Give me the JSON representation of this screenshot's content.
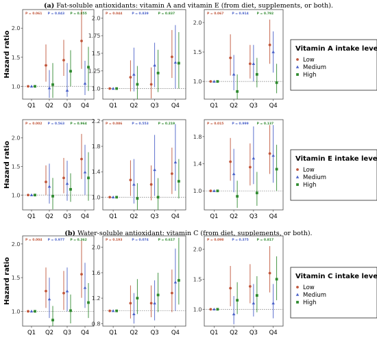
{
  "captions": {
    "a_letter": "(a)",
    "a_text": "Fat-soluble antioxidants: vitamin A and vitamin E (from diet, supplements, or both).",
    "b_letter": "(b)",
    "b_text": "Water-soluble antioxidant: vitamin C (from diet, supplements, or both)."
  },
  "colors": {
    "low": "#c0553a",
    "medium": "#4a61c8",
    "high": "#2f8a2f"
  },
  "legends": [
    {
      "title": "Vitamin A intake level",
      "items": [
        "Low",
        "Medium",
        "High"
      ]
    },
    {
      "title": "Vitamin E intake level",
      "items": [
        "Low",
        "Medium",
        "High"
      ]
    },
    {
      "title": "Vitamin C intake level",
      "items": [
        "Low",
        "Medium",
        "High"
      ]
    }
  ],
  "chart_data": [
    {
      "type": "scatter",
      "row": 0,
      "col": 0,
      "ylabel": "Hazard ratio",
      "categories": [
        "Q1",
        "Q2",
        "Q3",
        "Q4"
      ],
      "yticks": [
        1.0,
        1.5,
        2.0
      ],
      "ylim": [
        0.78,
        2.32
      ],
      "p_values": [
        "P = 0.061",
        "P = 0.843",
        "P = 0.855"
      ],
      "series": [
        {
          "name": "Low",
          "values": [
            [
              1.0,
              1.0,
              1.0
            ],
            [
              1.36,
              1.08,
              1.72
            ],
            [
              1.45,
              1.18,
              1.8
            ],
            [
              1.78,
              1.3,
              2.32
            ]
          ]
        },
        {
          "name": "Medium",
          "values": [
            [
              1.0,
              1.0,
              1.0
            ],
            [
              0.97,
              0.8,
              1.28
            ],
            [
              0.93,
              0.82,
              1.4
            ],
            [
              1.05,
              0.85,
              1.44
            ]
          ]
        },
        {
          "name": "High",
          "values": [
            [
              1.0,
              1.0,
              1.0
            ],
            [
              1.03,
              0.8,
              1.4
            ],
            [
              1.26,
              1.0,
              1.62
            ],
            [
              1.33,
              0.92,
              1.68
            ]
          ]
        }
      ]
    },
    {
      "type": "scatter",
      "row": 0,
      "col": 1,
      "ylabel": "",
      "categories": [
        "Q1",
        "Q2",
        "Q3",
        "Q4"
      ],
      "yticks": [
        1.0,
        1.25,
        1.5,
        1.75,
        2.0
      ],
      "ylim": [
        0.85,
        2.12
      ],
      "p_values": [
        "P = 0.044",
        "P = 0.839",
        "P = 0.837"
      ],
      "series": [
        {
          "name": "Low",
          "values": [
            [
              1.0,
              1.0,
              1.0
            ],
            [
              1.16,
              0.96,
              1.4
            ],
            [
              1.06,
              0.86,
              1.3
            ],
            [
              1.45,
              1.15,
              1.83
            ]
          ]
        },
        {
          "name": "Medium",
          "values": [
            [
              1.0,
              1.0,
              1.0
            ],
            [
              1.2,
              0.96,
              1.58
            ],
            [
              1.33,
              1.02,
              1.65
            ],
            [
              1.37,
              1.0,
              1.9
            ]
          ]
        },
        {
          "name": "High",
          "values": [
            [
              1.0,
              1.0,
              1.0
            ],
            [
              1.06,
              0.85,
              1.32
            ],
            [
              1.22,
              0.95,
              1.55
            ],
            [
              1.36,
              1.0,
              1.8
            ]
          ]
        }
      ]
    },
    {
      "type": "scatter",
      "row": 0,
      "col": 2,
      "ylabel": "",
      "categories": [
        "Q1",
        "Q2",
        "Q3",
        "Q4"
      ],
      "yticks": [
        1.0,
        1.5,
        2.0
      ],
      "ylim": [
        0.7,
        2.22
      ],
      "p_values": [
        "P = 0.067",
        "P = 0.914",
        "P = 0.792"
      ],
      "series": [
        {
          "name": "Low",
          "values": [
            [
              1.0,
              1.0,
              1.0
            ],
            [
              1.4,
              1.1,
              1.8
            ],
            [
              1.3,
              1.05,
              1.62
            ],
            [
              1.62,
              1.3,
              2.05
            ]
          ]
        },
        {
          "name": "Medium",
          "values": [
            [
              1.0,
              1.0,
              1.0
            ],
            [
              1.12,
              0.85,
              1.45
            ],
            [
              1.3,
              1.0,
              1.62
            ],
            [
              1.5,
              1.15,
              1.85
            ]
          ]
        },
        {
          "name": "High",
          "values": [
            [
              1.0,
              1.0,
              1.0
            ],
            [
              0.83,
              0.7,
              1.12
            ],
            [
              1.12,
              0.9,
              1.4
            ],
            [
              0.98,
              0.8,
              1.3
            ]
          ]
        }
      ]
    },
    {
      "type": "scatter",
      "row": 1,
      "col": 0,
      "ylabel": "Hazard ratio",
      "categories": [
        "Q1",
        "Q2",
        "Q3",
        "Q4"
      ],
      "yticks": [
        1.0,
        1.5,
        2.0
      ],
      "ylim": [
        0.74,
        2.32
      ],
      "p_values": [
        "P = 0.002",
        "P = 0.563",
        "P = 0.964"
      ],
      "series": [
        {
          "name": "Low",
          "values": [
            [
              1.0,
              1.0,
              1.0
            ],
            [
              1.23,
              1.0,
              1.52
            ],
            [
              1.3,
              1.03,
              1.65
            ],
            [
              1.63,
              1.28,
              2.07
            ]
          ]
        },
        {
          "name": "Medium",
          "values": [
            [
              1.0,
              1.0,
              1.0
            ],
            [
              1.15,
              0.85,
              1.55
            ],
            [
              1.2,
              0.9,
              1.6
            ],
            [
              1.4,
              1.0,
              1.88
            ]
          ]
        },
        {
          "name": "High",
          "values": [
            [
              1.0,
              1.0,
              1.0
            ],
            [
              0.98,
              0.75,
              1.3
            ],
            [
              1.1,
              0.88,
              1.38
            ],
            [
              1.3,
              0.9,
              1.75
            ]
          ]
        }
      ]
    },
    {
      "type": "scatter",
      "row": 1,
      "col": 1,
      "ylabel": "",
      "categories": [
        "Q1",
        "Q2",
        "Q3",
        "Q4"
      ],
      "yticks": [
        1.0,
        1.4,
        1.8,
        2.2
      ],
      "ylim": [
        0.8,
        2.22
      ],
      "p_values": [
        "P = 0.086",
        "P = 0.553",
        "P = 0.219"
      ],
      "series": [
        {
          "name": "Low",
          "values": [
            [
              1.0,
              1.0,
              1.0
            ],
            [
              1.27,
              1.02,
              1.58
            ],
            [
              1.2,
              0.95,
              1.5
            ],
            [
              1.37,
              1.05,
              1.78
            ]
          ]
        },
        {
          "name": "Medium",
          "values": [
            [
              1.0,
              1.0,
              1.0
            ],
            [
              1.2,
              0.9,
              1.6
            ],
            [
              1.43,
              1.02,
              1.98
            ],
            [
              1.55,
              1.1,
              2.15
            ]
          ]
        },
        {
          "name": "High",
          "values": [
            [
              1.0,
              1.0,
              1.0
            ],
            [
              0.98,
              0.8,
              1.22
            ],
            [
              1.0,
              0.8,
              1.3
            ],
            [
              1.25,
              0.98,
              1.6
            ]
          ]
        }
      ]
    },
    {
      "type": "scatter",
      "row": 1,
      "col": 2,
      "ylabel": "",
      "categories": [
        "Q1",
        "Q2",
        "Q3",
        "Q4"
      ],
      "yticks": [
        1.0,
        1.4,
        1.8
      ],
      "ylim": [
        0.72,
        2.05
      ],
      "p_values": [
        "P = 0.015",
        "P = 0.999",
        "P = 0.137"
      ],
      "series": [
        {
          "name": "Low",
          "values": [
            [
              1.0,
              1.0,
              1.0
            ],
            [
              1.43,
              1.15,
              1.78
            ],
            [
              1.35,
              1.08,
              1.7
            ],
            [
              1.55,
              1.25,
              1.97
            ]
          ]
        },
        {
          "name": "Medium",
          "values": [
            [
              1.0,
              1.0,
              1.0
            ],
            [
              1.25,
              0.98,
              1.62
            ],
            [
              1.48,
              1.1,
              1.95
            ],
            [
              1.52,
              1.12,
              1.97
            ]
          ]
        },
        {
          "name": "High",
          "values": [
            [
              1.0,
              1.0,
              1.0
            ],
            [
              0.92,
              0.75,
              1.15
            ],
            [
              0.97,
              0.78,
              1.28
            ],
            [
              1.32,
              1.0,
              1.68
            ]
          ]
        }
      ]
    },
    {
      "type": "scatter",
      "row": 2,
      "col": 0,
      "ylabel": "Hazard ratio",
      "categories": [
        "Q1",
        "Q2",
        "Q3",
        "Q4"
      ],
      "yticks": [
        1.0,
        1.5,
        2.0
      ],
      "ylim": [
        0.78,
        2.12
      ],
      "p_values": [
        "P = 0.004",
        "P = 0.977",
        "P = 0.362"
      ],
      "series": [
        {
          "name": "Low",
          "values": [
            [
              1.0,
              1.0,
              1.0
            ],
            [
              1.3,
              1.05,
              1.65
            ],
            [
              1.27,
              1.02,
              1.6
            ],
            [
              1.55,
              1.2,
              2.05
            ]
          ]
        },
        {
          "name": "Medium",
          "values": [
            [
              1.0,
              1.0,
              1.0
            ],
            [
              1.18,
              0.9,
              1.5
            ],
            [
              1.3,
              1.0,
              1.65
            ],
            [
              1.35,
              1.05,
              1.72
            ]
          ]
        },
        {
          "name": "High",
          "values": [
            [
              1.0,
              1.0,
              1.0
            ],
            [
              0.87,
              0.78,
              1.08
            ],
            [
              1.01,
              0.82,
              1.25
            ],
            [
              1.13,
              0.9,
              1.42
            ]
          ]
        }
      ]
    },
    {
      "type": "scatter",
      "row": 2,
      "col": 1,
      "ylabel": "",
      "categories": [
        "Q1",
        "Q2",
        "Q3",
        "Q4"
      ],
      "yticks": [
        0.8,
        1.2,
        1.6,
        2.0
      ],
      "ylim": [
        0.76,
        2.18
      ],
      "p_values": [
        "P = 0.193",
        "P = 0.074",
        "P = 0.617"
      ],
      "series": [
        {
          "name": "Low",
          "values": [
            [
              1.0,
              1.0,
              1.0
            ],
            [
              1.12,
              0.88,
              1.4
            ],
            [
              1.12,
              0.9,
              1.4
            ],
            [
              1.28,
              0.98,
              1.65
            ]
          ]
        },
        {
          "name": "Medium",
          "values": [
            [
              1.0,
              1.0,
              1.0
            ],
            [
              0.95,
              0.8,
              1.28
            ],
            [
              1.12,
              0.85,
              1.48
            ],
            [
              1.45,
              1.0,
              1.98
            ]
          ]
        },
        {
          "name": "High",
          "values": [
            [
              1.0,
              1.0,
              1.0
            ],
            [
              1.2,
              0.95,
              1.5
            ],
            [
              1.25,
              0.98,
              1.6
            ],
            [
              1.48,
              1.1,
              2.15
            ]
          ]
        }
      ]
    },
    {
      "type": "scatter",
      "row": 2,
      "col": 2,
      "ylabel": "",
      "categories": [
        "Q1",
        "Q2",
        "Q3",
        "Q4"
      ],
      "yticks": [
        1.0,
        1.5,
        2.0
      ],
      "ylim": [
        0.72,
        2.22
      ],
      "p_values": [
        "P = 0.098",
        "P = 0.375",
        "P = 0.817"
      ],
      "series": [
        {
          "name": "Low",
          "values": [
            [
              1.0,
              1.0,
              1.0
            ],
            [
              1.35,
              1.05,
              1.72
            ],
            [
              1.38,
              1.1,
              1.75
            ],
            [
              1.6,
              1.28,
              2.05
            ]
          ]
        },
        {
          "name": "Medium",
          "values": [
            [
              1.0,
              1.0,
              1.0
            ],
            [
              0.92,
              0.75,
              1.22
            ],
            [
              1.1,
              0.88,
              1.42
            ],
            [
              1.1,
              0.85,
              1.42
            ]
          ]
        },
        {
          "name": "High",
          "values": [
            [
              1.0,
              1.0,
              1.0
            ],
            [
              1.15,
              0.92,
              1.45
            ],
            [
              1.23,
              0.95,
              1.55
            ],
            [
              1.5,
              1.15,
              1.88
            ]
          ]
        }
      ]
    }
  ]
}
